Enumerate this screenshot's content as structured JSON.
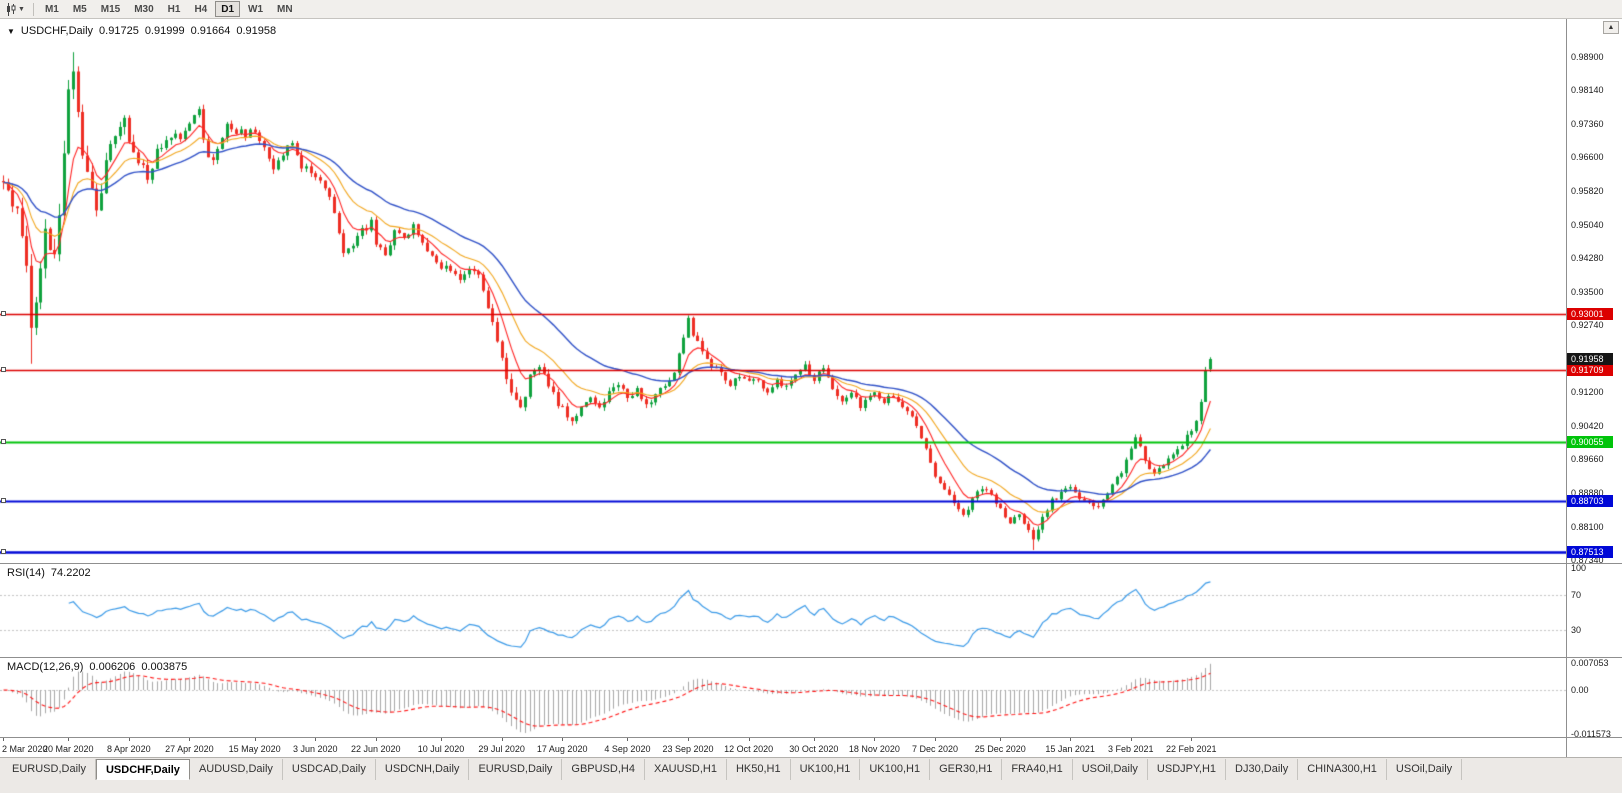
{
  "colors": {
    "candle_up": "#10a23e",
    "candle_down": "#ee2e24",
    "ma_fast": "#ff2525",
    "ma_mid": "#f2a71f",
    "ma_slow": "#3152c8",
    "rsi_line": "#3c9be8",
    "macd_hist": "#a8a8a8",
    "macd_signal": "#ff1414",
    "price_badge_bg": "#161616",
    "axis_text": "#1a1a1a"
  },
  "toolbar": {
    "timeframes": [
      "M1",
      "M5",
      "M15",
      "M30",
      "H1",
      "H4",
      "D1",
      "W1",
      "MN"
    ],
    "active_timeframe": "D1"
  },
  "scroll_up_glyph": "▲",
  "chart": {
    "symbol_line": {
      "caret": "▼",
      "symbol": "USDCHF,Daily",
      "open": "0.91725",
      "high": "0.91999",
      "low": "0.91664",
      "close": "0.91958"
    },
    "price_axis_labels": [
      "0.98900",
      "0.98140",
      "0.97360",
      "0.96600",
      "0.95820",
      "0.95040",
      "0.94280",
      "0.93500",
      "0.92740",
      "0.91960",
      "0.91200",
      "0.90420",
      "0.89660",
      "0.88880",
      "0.88100",
      "0.87340"
    ],
    "current_price_badge": {
      "value": "0.91958",
      "price": 0.91958
    },
    "hlines": [
      {
        "label": "0.93001",
        "price": 0.93001,
        "color": "#dc0000",
        "width": 1.4
      },
      {
        "label": "0.91709",
        "price": 0.91709,
        "color": "#dc0000",
        "width": 1.4
      },
      {
        "label": "0.90055",
        "price": 0.90055,
        "color": "#00c40a",
        "width": 2
      },
      {
        "label": "0.88703",
        "price": 0.88703,
        "color": "#0008d7",
        "width": 2
      },
      {
        "label": "0.87513",
        "price": 0.87513,
        "color": "#0008d7",
        "width": 2.6
      }
    ]
  },
  "rsi": {
    "label": "RSI(14)",
    "value": "74.2202",
    "levels": [
      "100",
      "70",
      "30"
    ]
  },
  "macd": {
    "label": "MACD(12,26,9)",
    "value_main": "0.006206",
    "value_signal": "0.003875",
    "levels": [
      "0.007053",
      "0.00",
      "-0.011573"
    ]
  },
  "date_axis": [
    [
      0,
      "2 Mar 2020"
    ],
    [
      14,
      "20 Mar 2020"
    ],
    [
      27,
      "8 Apr 2020"
    ],
    [
      40,
      "27 Apr 2020"
    ],
    [
      54,
      "15 May 2020"
    ],
    [
      67,
      "3 Jun 2020"
    ],
    [
      80,
      "22 Jun 2020"
    ],
    [
      94,
      "10 Jul 2020"
    ],
    [
      107,
      "29 Jul 2020"
    ],
    [
      120,
      "17 Aug 2020"
    ],
    [
      134,
      "4 Sep 2020"
    ],
    [
      147,
      "23 Sep 2020"
    ],
    [
      160,
      "12 Oct 2020"
    ],
    [
      174,
      "30 Oct 2020"
    ],
    [
      187,
      "18 Nov 2020"
    ],
    [
      200,
      "7 Dec 2020"
    ],
    [
      214,
      "25 Dec 2020"
    ],
    [
      229,
      "15 Jan 2021"
    ],
    [
      242,
      "3 Feb 2021"
    ],
    [
      255,
      "22 Feb 2021"
    ]
  ],
  "tabs": {
    "items": [
      "EURUSD,Daily",
      "USDCHF,Daily",
      "AUDUSD,Daily",
      "USDCAD,Daily",
      "USDCNH,Daily",
      "EURUSD,Daily",
      "GBPUSD,H4",
      "XAUUSD,H1",
      "HK50,H1",
      "UK100,H1",
      "UK100,H1",
      "GER30,H1",
      "FRA40,H1",
      "USOil,Daily",
      "USDJPY,H1",
      "DJ30,Daily",
      "CHINA300,H1",
      "USOil,Daily"
    ],
    "active_index": 1
  },
  "chart_data": {
    "type": "candlestick",
    "symbol": "USDCHF",
    "timeframe": "Daily",
    "last_candle_ohlc": [
      0.91725,
      0.91999,
      0.91664,
      0.91958
    ],
    "price_range": [
      0.87271,
      0.99773
    ],
    "candle_count": 260,
    "seed": 20210226,
    "price_anchors": [
      [
        0,
        0.96
      ],
      [
        2,
        0.956
      ],
      [
        4,
        0.95
      ],
      [
        5,
        0.942
      ],
      [
        6,
        0.928
      ],
      [
        7,
        0.935
      ],
      [
        9,
        0.948
      ],
      [
        11,
        0.945
      ],
      [
        13,
        0.965
      ],
      [
        14,
        0.984
      ],
      [
        15,
        0.987
      ],
      [
        16,
        0.975
      ],
      [
        18,
        0.961
      ],
      [
        20,
        0.954
      ],
      [
        22,
        0.964
      ],
      [
        24,
        0.972
      ],
      [
        26,
        0.976
      ],
      [
        27,
        0.97
      ],
      [
        29,
        0.965
      ],
      [
        31,
        0.961
      ],
      [
        33,
        0.967
      ],
      [
        35,
        0.969
      ],
      [
        38,
        0.971
      ],
      [
        40,
        0.974
      ],
      [
        42,
        0.976
      ],
      [
        44,
        0.965
      ],
      [
        46,
        0.967
      ],
      [
        48,
        0.974
      ],
      [
        50,
        0.972
      ],
      [
        52,
        0.971
      ],
      [
        54,
        0.972
      ],
      [
        56,
        0.969
      ],
      [
        58,
        0.964
      ],
      [
        60,
        0.966
      ],
      [
        62,
        0.97
      ],
      [
        64,
        0.964
      ],
      [
        67,
        0.961
      ],
      [
        69,
        0.959
      ],
      [
        71,
        0.953
      ],
      [
        73,
        0.944
      ],
      [
        75,
        0.946
      ],
      [
        77,
        0.949
      ],
      [
        79,
        0.951
      ],
      [
        80,
        0.946
      ],
      [
        82,
        0.944
      ],
      [
        84,
        0.949
      ],
      [
        86,
        0.947
      ],
      [
        88,
        0.95
      ],
      [
        90,
        0.946
      ],
      [
        92,
        0.943
      ],
      [
        94,
        0.941
      ],
      [
        96,
        0.94
      ],
      [
        98,
        0.938
      ],
      [
        100,
        0.941
      ],
      [
        102,
        0.938
      ],
      [
        104,
        0.931
      ],
      [
        106,
        0.924
      ],
      [
        107,
        0.919
      ],
      [
        109,
        0.913
      ],
      [
        111,
        0.908
      ],
      [
        113,
        0.915
      ],
      [
        115,
        0.918
      ],
      [
        117,
        0.913
      ],
      [
        120,
        0.908
      ],
      [
        122,
        0.905
      ],
      [
        124,
        0.908
      ],
      [
        126,
        0.911
      ],
      [
        128,
        0.908
      ],
      [
        130,
        0.912
      ],
      [
        132,
        0.914
      ],
      [
        134,
        0.91
      ],
      [
        136,
        0.913
      ],
      [
        138,
        0.909
      ],
      [
        140,
        0.911
      ],
      [
        142,
        0.914
      ],
      [
        144,
        0.916
      ],
      [
        146,
        0.925
      ],
      [
        147,
        0.9285
      ],
      [
        148,
        0.925
      ],
      [
        150,
        0.922
      ],
      [
        152,
        0.918
      ],
      [
        154,
        0.916
      ],
      [
        156,
        0.913
      ],
      [
        158,
        0.916
      ],
      [
        160,
        0.915
      ],
      [
        162,
        0.914
      ],
      [
        164,
        0.912
      ],
      [
        166,
        0.915
      ],
      [
        168,
        0.913
      ],
      [
        170,
        0.916
      ],
      [
        172,
        0.918
      ],
      [
        174,
        0.915
      ],
      [
        176,
        0.918
      ],
      [
        178,
        0.913
      ],
      [
        180,
        0.91
      ],
      [
        182,
        0.912
      ],
      [
        184,
        0.909
      ],
      [
        187,
        0.912
      ],
      [
        189,
        0.91
      ],
      [
        191,
        0.911
      ],
      [
        193,
        0.908
      ],
      [
        195,
        0.906
      ],
      [
        197,
        0.902
      ],
      [
        199,
        0.896
      ],
      [
        200,
        0.893
      ],
      [
        202,
        0.89
      ],
      [
        204,
        0.887
      ],
      [
        206,
        0.884
      ],
      [
        208,
        0.887
      ],
      [
        210,
        0.89
      ],
      [
        212,
        0.888
      ],
      [
        214,
        0.885
      ],
      [
        216,
        0.882
      ],
      [
        218,
        0.884
      ],
      [
        220,
        0.88
      ],
      [
        221,
        0.8775
      ],
      [
        223,
        0.883
      ],
      [
        225,
        0.887
      ],
      [
        227,
        0.889
      ],
      [
        229,
        0.89
      ],
      [
        231,
        0.888
      ],
      [
        233,
        0.886
      ],
      [
        235,
        0.885
      ],
      [
        237,
        0.889
      ],
      [
        239,
        0.892
      ],
      [
        241,
        0.896
      ],
      [
        242,
        0.8995
      ],
      [
        243,
        0.902
      ],
      [
        245,
        0.896
      ],
      [
        247,
        0.893
      ],
      [
        249,
        0.895
      ],
      [
        251,
        0.898
      ],
      [
        253,
        0.9
      ],
      [
        255,
        0.903
      ],
      [
        256,
        0.906
      ],
      [
        257,
        0.9105
      ],
      [
        258,
        0.9168
      ],
      [
        259,
        0.9194
      ]
    ],
    "volatility_anchors": [
      [
        0,
        0.004
      ],
      [
        8,
        0.005
      ],
      [
        16,
        0.0045
      ],
      [
        24,
        0.003
      ],
      [
        34,
        0.002
      ],
      [
        60,
        0.0016
      ],
      [
        100,
        0.0017
      ],
      [
        108,
        0.0022
      ],
      [
        120,
        0.0016
      ],
      [
        150,
        0.0014
      ],
      [
        200,
        0.0013
      ],
      [
        230,
        0.0012
      ],
      [
        245,
        0.0014
      ],
      [
        259,
        0.0015
      ]
    ],
    "overrides": {
      "6": {
        "l": 0.9185
      },
      "15": {
        "h": 0.9901
      },
      "147": {
        "h": 0.9296
      },
      "221": {
        "l": 0.8757
      },
      "258": {
        "c": 0.917
      },
      "259": {
        "o": 0.91725,
        "h": 0.91999,
        "l": 0.91664,
        "c": 0.91958
      }
    },
    "moving_averages": [
      {
        "period": 7,
        "color_key": "ma_fast"
      },
      {
        "period": 16,
        "color_key": "ma_mid"
      },
      {
        "period": 32,
        "color_key": "ma_slow"
      }
    ],
    "rsi_period": 14,
    "rsi_current": 74.2202,
    "rsi_range": [
      0,
      105
    ],
    "macd_params": [
      12,
      26,
      9
    ],
    "macd_current": [
      0.006206,
      0.003875
    ],
    "macd_display_range": [
      -0.011573,
      0.007053
    ],
    "support_resistance_levels": [
      0.93001,
      0.91709,
      0.90055,
      0.88703,
      0.87513
    ]
  }
}
